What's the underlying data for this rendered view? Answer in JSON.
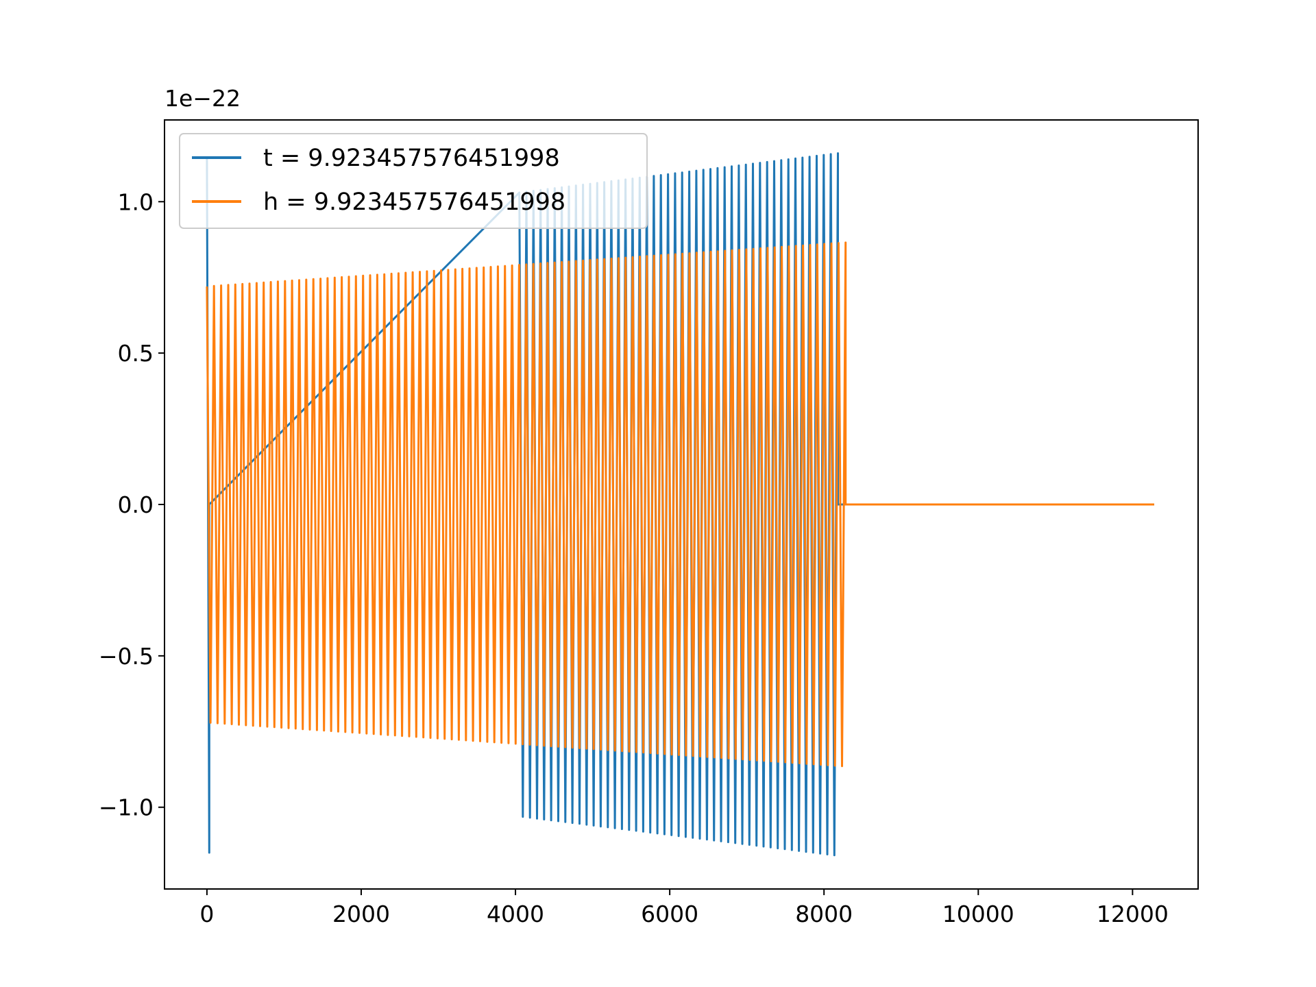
{
  "chart_data": {
    "type": "line",
    "title": "",
    "xlabel": "",
    "ylabel": "",
    "y_offset_label": "1e−22",
    "xlim": [
      -550,
      12850
    ],
    "ylim": [
      -1.27,
      1.27
    ],
    "x_ticks": [
      0,
      2000,
      4000,
      6000,
      8000,
      10000,
      12000
    ],
    "x_tick_labels": [
      "0",
      "2000",
      "4000",
      "6000",
      "8000",
      "10000",
      "12000"
    ],
    "y_ticks": [
      -1.0,
      -0.5,
      0.0,
      0.5,
      1.0
    ],
    "y_tick_labels": [
      "−1.0",
      "−0.5",
      "0.0",
      "0.5",
      "1.0"
    ],
    "grid": false,
    "legend_position": "top-left",
    "series": [
      {
        "name": "t = 9.923457576451998",
        "color": "#1f77b4",
        "segments": [
          {
            "x_start": 0,
            "x_end": 30,
            "amp_start": 1.15,
            "amp_end": 1.15
          },
          {
            "x_start": 4050,
            "x_end": 8180,
            "amp_start": 1.03,
            "amp_end": 1.16
          }
        ],
        "zero_until": 12280
      },
      {
        "name": "h = 9.923457576451998",
        "color": "#ff7f0e",
        "segments": [
          {
            "x_start": 0,
            "x_end": 8280,
            "amp_start": 0.72,
            "amp_end": 0.865
          }
        ],
        "zero_until": 12280
      }
    ]
  }
}
